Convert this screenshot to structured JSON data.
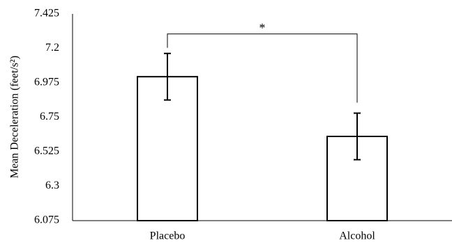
{
  "chart_data": {
    "type": "bar",
    "title": "",
    "xlabel": "",
    "ylabel": "Mean Deceleration (feet/s²)",
    "categories": [
      "Placebo",
      "Alcohol"
    ],
    "series": [
      {
        "values": [
          7.015,
          6.625
        ],
        "errors": [
          0.152,
          0.152
        ]
      }
    ],
    "ylim": [
      6.075,
      7.425
    ],
    "yticks": [
      "6.075",
      "6.3",
      "6.525",
      "6.75",
      "6.975",
      "7.2",
      "7.425"
    ],
    "grid": false,
    "legend": "none",
    "significance": {
      "between": [
        "Placebo",
        "Alcohol"
      ],
      "label": "*"
    },
    "colors": {
      "bar_fill": "#ffffff",
      "stroke": "#000000"
    }
  }
}
